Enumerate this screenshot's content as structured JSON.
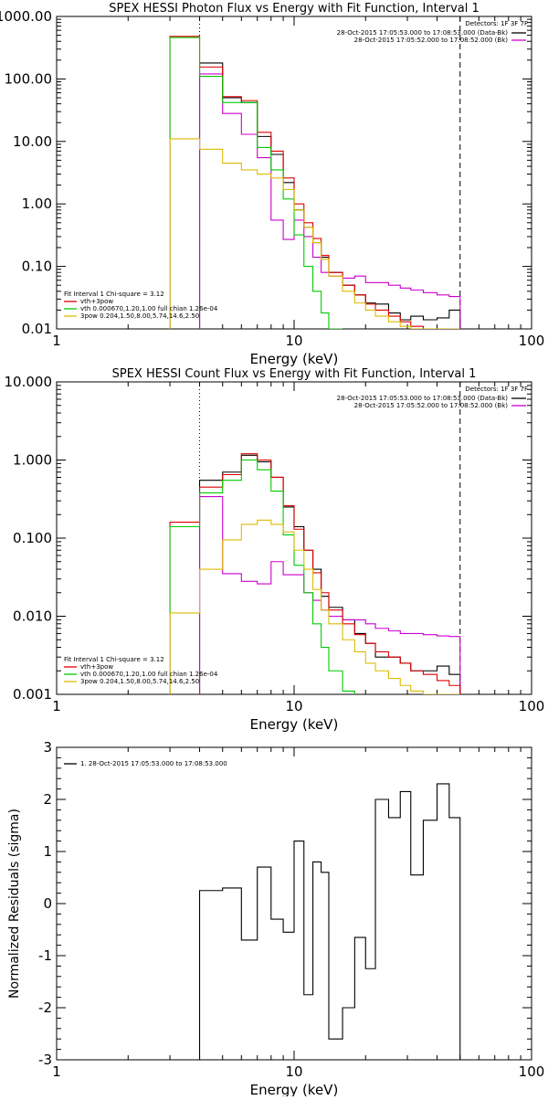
{
  "chart_data": [
    {
      "type": "line",
      "step": true,
      "title": "SPEX HESSI Photon Flux vs Energy with Fit Function, Interval 1",
      "xlabel": "Energy (keV)",
      "ylabel": "",
      "xscale": "log",
      "yscale": "log",
      "xlim": [
        1,
        100
      ],
      "ylim": [
        0.01,
        1000
      ],
      "x_ticks": [
        "1",
        "10",
        "100"
      ],
      "y_ticks": [
        "0.01",
        "0.10",
        "1.00",
        "10.00",
        "100.00",
        "1000.00"
      ],
      "vlines": [
        {
          "x": 4.0,
          "style": "dotted"
        },
        {
          "x": 50.0,
          "style": "dashed"
        }
      ],
      "legend_top_right": {
        "header": "Detectors: 1F 3F 7F",
        "entries": [
          {
            "text": "28-Oct-2015 17:05:53.000 to 17:08:53.000 (Data-Bk)",
            "color": "#000000"
          },
          {
            "text": "28-Oct-2015 17:05:52.000 to 17:08:52.000 (Bk)",
            "color": "#cc00cc"
          }
        ]
      },
      "legend_bottom_left": {
        "header": "Fit Interval 1    Chi-square = 3.12",
        "entries": [
          {
            "text": "vth+3pow",
            "color": "#dd0000"
          },
          {
            "text": "vth 0.000670,1.20,1.00  full chian 1.26e-04",
            "color": "#00cc00"
          },
          {
            "text": "3pow 0.204,1.50,8.00,5.74,14.6,2.50",
            "color": "#ddbb00"
          }
        ]
      },
      "edges": [
        3,
        4,
        5,
        6,
        7,
        8,
        9,
        10,
        11,
        12,
        13,
        14,
        16,
        18,
        20,
        22,
        25,
        28,
        31,
        35,
        40,
        45,
        50
      ],
      "series": [
        {
          "name": "Data-Bk",
          "color": "#000000",
          "values": [
            null,
            180,
            50,
            42,
            12,
            6.2,
            2.2,
            0.8,
            0.42,
            0.24,
            0.14,
            0.08,
            0.05,
            0.035,
            0.026,
            0.025,
            0.018,
            0.014,
            0.016,
            0.014,
            0.015,
            0.02
          ]
        },
        {
          "name": "Bk",
          "color": "#cc00cc",
          "values": [
            null,
            120,
            28,
            13,
            5.5,
            0.55,
            0.27,
            0.55,
            0.3,
            0.14,
            0.08,
            0.07,
            0.065,
            0.07,
            0.055,
            0.055,
            0.05,
            0.045,
            0.042,
            0.038,
            0.035,
            0.033
          ]
        },
        {
          "name": "vth+3pow",
          "color": "#dd0000",
          "values": [
            480,
            155,
            52,
            45,
            14,
            7,
            2.6,
            1.0,
            0.5,
            0.28,
            0.15,
            0.08,
            0.05,
            0.035,
            0.025,
            0.02,
            0.016,
            0.013,
            0.011,
            0.009,
            0.007,
            0.006
          ]
        },
        {
          "name": "vth",
          "color": "#00cc00",
          "values": [
            460,
            110,
            42,
            42,
            8,
            3.5,
            1.2,
            0.32,
            0.1,
            0.04,
            0.018,
            0.01,
            null,
            null,
            null,
            null,
            null,
            null,
            null,
            null,
            null,
            null
          ]
        },
        {
          "name": "3pow",
          "color": "#ddbb00",
          "values": [
            11,
            7.5,
            4.5,
            3.5,
            3.0,
            2.6,
            1.7,
            0.8,
            0.42,
            0.24,
            0.13,
            0.07,
            0.04,
            0.026,
            0.02,
            0.016,
            0.013,
            0.011,
            0.009,
            0.008,
            0.007,
            0.006
          ]
        }
      ]
    },
    {
      "type": "line",
      "step": true,
      "title": "SPEX HESSI Count Flux vs Energy with Fit Function, Interval 1",
      "xlabel": "Energy (keV)",
      "ylabel": "",
      "xscale": "log",
      "yscale": "log",
      "xlim": [
        1,
        100
      ],
      "ylim": [
        0.001,
        10
      ],
      "x_ticks": [
        "1",
        "10",
        "100"
      ],
      "y_ticks": [
        "0.001",
        "0.010",
        "0.100",
        "1.000",
        "10.000"
      ],
      "vlines": [
        {
          "x": 4.0,
          "style": "dotted"
        },
        {
          "x": 50.0,
          "style": "dashed"
        }
      ],
      "legend_top_right": {
        "header": "Detectors: 1F 3F 7F",
        "entries": [
          {
            "text": "28-Oct-2015 17:05:53.000 to 17:08:53.000 (Data-Bk)",
            "color": "#000000"
          },
          {
            "text": "28-Oct-2015 17:05:52.000 to 17:08:52.000 (Bk)",
            "color": "#cc00cc"
          }
        ]
      },
      "legend_bottom_left": {
        "header": "Fit Interval 1    Chi-square = 3.12",
        "entries": [
          {
            "text": "vth+3pow",
            "color": "#dd0000"
          },
          {
            "text": "vth 0.000670,1.20,1.00  full chian 1.26e-04",
            "color": "#00cc00"
          },
          {
            "text": "3pow 0.204,1.50,8.00,5.74,14.6,2.50",
            "color": "#ddbb00"
          }
        ]
      },
      "edges": [
        3,
        4,
        5,
        6,
        7,
        8,
        9,
        10,
        11,
        12,
        13,
        14,
        16,
        18,
        20,
        22,
        25,
        28,
        31,
        35,
        40,
        45,
        50
      ],
      "series": [
        {
          "name": "Data-Bk",
          "color": "#000000",
          "values": [
            null,
            0.55,
            0.7,
            1.15,
            0.95,
            0.6,
            0.25,
            0.14,
            0.07,
            0.04,
            0.018,
            0.013,
            0.009,
            0.006,
            0.0045,
            0.003,
            0.003,
            0.0025,
            0.002,
            0.002,
            0.0023,
            0.0018
          ]
        },
        {
          "name": "Bk",
          "color": "#cc00cc",
          "values": [
            null,
            0.34,
            0.035,
            0.028,
            0.026,
            0.05,
            0.034,
            0.034,
            0.02,
            0.016,
            0.012,
            0.01,
            0.009,
            0.009,
            0.008,
            0.007,
            0.0065,
            0.006,
            0.006,
            0.0058,
            0.0056,
            0.0055
          ]
        },
        {
          "name": "vth+3pow",
          "color": "#dd0000",
          "values": [
            0.16,
            0.45,
            0.65,
            1.2,
            1.0,
            0.6,
            0.26,
            0.13,
            0.07,
            0.036,
            0.02,
            0.012,
            0.008,
            0.0058,
            0.0045,
            0.0035,
            0.003,
            0.0025,
            0.002,
            0.0018,
            0.0015,
            0.0013
          ]
        },
        {
          "name": "vth",
          "color": "#00cc00",
          "values": [
            0.14,
            0.38,
            0.55,
            1.0,
            0.75,
            0.4,
            0.11,
            0.045,
            0.02,
            0.008,
            0.004,
            0.002,
            0.0011,
            null,
            null,
            null,
            null,
            null,
            null,
            null,
            null,
            null
          ]
        },
        {
          "name": "3pow",
          "color": "#ddbb00",
          "values": [
            0.011,
            0.04,
            0.095,
            0.15,
            0.17,
            0.15,
            0.12,
            0.07,
            0.04,
            0.022,
            0.012,
            0.008,
            0.005,
            0.0035,
            0.0025,
            0.002,
            0.0016,
            0.0013,
            0.0011,
            0.0009,
            0.0008,
            0.0007
          ]
        }
      ]
    },
    {
      "type": "line",
      "step": true,
      "title": "",
      "xlabel": "Energy (keV)",
      "ylabel": "Normalized Residuals (sigma)",
      "xscale": "log",
      "yscale": "linear",
      "xlim": [
        1,
        100
      ],
      "ylim": [
        -3,
        3
      ],
      "x_ticks": [
        "1",
        "10",
        "100"
      ],
      "y_ticks": [
        "-3",
        "-2",
        "-1",
        "0",
        "1",
        "2",
        "3"
      ],
      "legend_top_left": {
        "entries": [
          {
            "text": "1. 28-Oct-2015 17:05:53.000 to 17:08:53.000",
            "color": "#000000"
          }
        ]
      },
      "edges": [
        4,
        5,
        6,
        7,
        8,
        9,
        10,
        11,
        12,
        13,
        14,
        16,
        18,
        20,
        22,
        25,
        28,
        31,
        35,
        40,
        45,
        50
      ],
      "series": [
        {
          "name": "1. 28-Oct-2015 17:05:53.000 to 17:08:53.000",
          "color": "#000000",
          "values": [
            0.25,
            0.3,
            -0.7,
            0.7,
            -0.3,
            -0.55,
            1.2,
            -1.75,
            0.8,
            0.6,
            -2.6,
            -2.0,
            -0.65,
            -1.25,
            2.0,
            1.65,
            2.15,
            0.55,
            1.6,
            2.3,
            1.65
          ]
        }
      ]
    }
  ]
}
